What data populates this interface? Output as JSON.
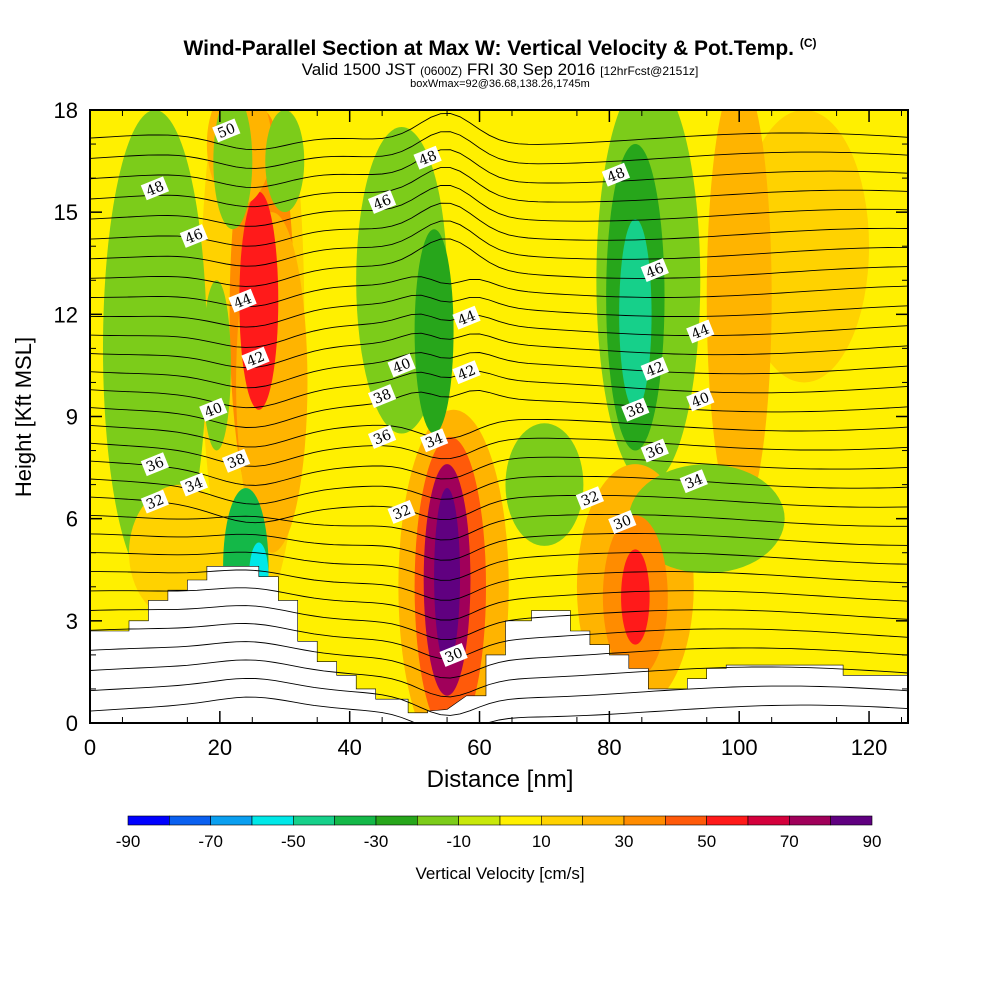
{
  "title": "Wind-Parallel Section at Max W: Vertical Velocity & Pot.Temp.",
  "title_mark": "(C)",
  "subtitle_pre": "Valid 1500 JST",
  "subtitle_small1": "(0600Z)",
  "subtitle_mid": "FRI 30 Sep 2016",
  "subtitle_small2": "[12hrFcst@2151z]",
  "subtitle2": "boxWmax=92@36.68,138.26,1745m",
  "chart_data": {
    "type": "heatmap",
    "xlabel": "Distance [nm]",
    "ylabel": "Height [Kft MSL]",
    "xlim": [
      0,
      126
    ],
    "ylim": [
      0,
      18
    ],
    "xticks": [
      0,
      20,
      40,
      60,
      80,
      100,
      120
    ],
    "yticks": [
      0,
      3,
      6,
      9,
      12,
      15,
      18
    ],
    "colorbar": {
      "label": "Vertical Velocity [cm/s]",
      "levels": [
        -90,
        -80,
        -70,
        -60,
        -50,
        -40,
        -30,
        -20,
        -10,
        0,
        10,
        20,
        30,
        40,
        50,
        60,
        70,
        80,
        90
      ],
      "tick_labels": [
        "-90",
        "-70",
        "-50",
        "-30",
        "-10",
        "10",
        "30",
        "50",
        "70",
        "90"
      ],
      "colors": [
        "#0000ff",
        "#0a60f0",
        "#0a9ff0",
        "#00e8e8",
        "#16d08a",
        "#14b848",
        "#27a61b",
        "#7ccc1a",
        "#c8e80a",
        "#fff000",
        "#ffd200",
        "#ffb400",
        "#ff8c00",
        "#ff5a0a",
        "#ff1a1a",
        "#d4003c",
        "#a0005a",
        "#600080"
      ]
    },
    "terrain": [
      [
        0,
        2.7
      ],
      [
        6,
        2.7
      ],
      [
        6,
        3.0
      ],
      [
        9,
        3.0
      ],
      [
        9,
        3.6
      ],
      [
        12,
        3.6
      ],
      [
        12,
        3.9
      ],
      [
        15,
        3.9
      ],
      [
        15,
        4.2
      ],
      [
        18,
        4.2
      ],
      [
        18,
        4.6
      ],
      [
        26,
        4.6
      ],
      [
        26,
        4.3
      ],
      [
        29,
        4.3
      ],
      [
        29,
        3.6
      ],
      [
        32,
        3.6
      ],
      [
        32,
        2.4
      ],
      [
        35,
        2.4
      ],
      [
        35,
        1.8
      ],
      [
        38,
        1.8
      ],
      [
        38,
        1.4
      ],
      [
        41,
        1.4
      ],
      [
        41,
        1.0
      ],
      [
        44,
        1.0
      ],
      [
        44,
        0.7
      ],
      [
        49,
        0.7
      ],
      [
        49,
        0.3
      ],
      [
        52,
        0.3
      ],
      [
        52,
        0.35
      ],
      [
        55,
        0.4
      ],
      [
        58,
        0.8
      ],
      [
        61,
        0.8
      ],
      [
        61,
        2.0
      ],
      [
        64,
        2.0
      ],
      [
        64,
        3.0
      ],
      [
        68,
        3.0
      ],
      [
        68,
        3.3
      ],
      [
        74,
        3.3
      ],
      [
        74,
        2.7
      ],
      [
        77,
        2.7
      ],
      [
        77,
        2.3
      ],
      [
        80,
        2.3
      ],
      [
        80,
        2.0
      ],
      [
        83,
        2.0
      ],
      [
        83,
        1.6
      ],
      [
        86,
        1.6
      ],
      [
        86,
        1.0
      ],
      [
        92,
        1.0
      ],
      [
        92,
        1.3
      ],
      [
        95,
        1.3
      ],
      [
        95,
        1.6
      ],
      [
        98,
        1.6
      ],
      [
        98,
        1.7
      ],
      [
        116,
        1.7
      ],
      [
        116,
        1.4
      ],
      [
        126,
        1.4
      ]
    ],
    "w_cells": [
      {
        "x": 26,
        "y": 12.4,
        "rx": 3,
        "ry": 3.2,
        "w": 55
      },
      {
        "x": 26.5,
        "y": 12,
        "rx": 5,
        "ry": 6,
        "w": 35
      },
      {
        "x": 25,
        "y": 12,
        "rx": 8,
        "ry": 9,
        "w": 15
      },
      {
        "x": 28,
        "y": 10,
        "rx": 5.5,
        "ry": 5,
        "w": 25
      },
      {
        "x": 23,
        "y": 17,
        "rx": 5,
        "ry": 1.8,
        "w": 25
      },
      {
        "x": 55,
        "y": 4.3,
        "rx": 2,
        "ry": 2.6,
        "w": 90
      },
      {
        "x": 55,
        "y": 4.2,
        "rx": 3.6,
        "ry": 3.4,
        "w": 70
      },
      {
        "x": 55.5,
        "y": 4,
        "rx": 5.5,
        "ry": 4.4,
        "w": 45
      },
      {
        "x": 56,
        "y": 4,
        "rx": 8.5,
        "ry": 5.2,
        "w": 22
      },
      {
        "x": 84,
        "y": 3.7,
        "rx": 2.2,
        "ry": 1.4,
        "w": 50
      },
      {
        "x": 84,
        "y": 3.7,
        "rx": 5,
        "ry": 2.4,
        "w": 38
      },
      {
        "x": 84,
        "y": 4,
        "rx": 9,
        "ry": 3.6,
        "w": 20
      },
      {
        "x": 100,
        "y": 12.5,
        "rx": 5,
        "ry": 6.5,
        "w": 22
      },
      {
        "x": 110,
        "y": 14,
        "rx": 10,
        "ry": 4,
        "w": 15
      },
      {
        "x": 14,
        "y": 5,
        "rx": 8,
        "ry": 2,
        "w": 18
      },
      {
        "x": 10,
        "y": 11,
        "rx": 8,
        "ry": 7,
        "w": -12
      },
      {
        "x": 22,
        "y": 16.5,
        "rx": 3,
        "ry": 2,
        "w": -20
      },
      {
        "x": 19.5,
        "y": 10.5,
        "rx": 2.2,
        "ry": 2.5,
        "w": -20
      },
      {
        "x": 24,
        "y": 4.6,
        "rx": 3.5,
        "ry": 2.3,
        "w": -35
      },
      {
        "x": 26,
        "y": 4.3,
        "rx": 1.5,
        "ry": 1,
        "w": -55
      },
      {
        "x": 48,
        "y": 13,
        "rx": 7,
        "ry": 4.5,
        "w": -15
      },
      {
        "x": 53,
        "y": 11.5,
        "rx": 3,
        "ry": 3,
        "w": -25
      },
      {
        "x": 84,
        "y": 12.5,
        "rx": 4.5,
        "ry": 4.5,
        "w": -28
      },
      {
        "x": 84,
        "y": 12,
        "rx": 2.5,
        "ry": 2.8,
        "w": -45
      },
      {
        "x": 86,
        "y": 13,
        "rx": 8,
        "ry": 6,
        "w": -12
      },
      {
        "x": 95,
        "y": 6,
        "rx": 12,
        "ry": 1.6,
        "w": -12
      },
      {
        "x": 70,
        "y": 7,
        "rx": 6,
        "ry": 1.8,
        "w": -12
      },
      {
        "x": 30,
        "y": 16.5,
        "rx": 3,
        "ry": 1.5,
        "w": -12
      }
    ],
    "theta_labels": [
      {
        "text": "50",
        "x": 21,
        "y": 17.4
      },
      {
        "text": "48",
        "x": 10,
        "y": 15.7
      },
      {
        "text": "46",
        "x": 16,
        "y": 14.3
      },
      {
        "text": "44",
        "x": 23.5,
        "y": 12.4
      },
      {
        "text": "42",
        "x": 25.5,
        "y": 10.7
      },
      {
        "text": "40",
        "x": 19,
        "y": 9.2
      },
      {
        "text": "38",
        "x": 22.5,
        "y": 7.7
      },
      {
        "text": "36",
        "x": 10,
        "y": 7.6
      },
      {
        "text": "34",
        "x": 16,
        "y": 7
      },
      {
        "text": "32",
        "x": 10,
        "y": 6.5
      },
      {
        "text": "48",
        "x": 52,
        "y": 16.6
      },
      {
        "text": "46",
        "x": 45,
        "y": 15.3
      },
      {
        "text": "44",
        "x": 58,
        "y": 11.9
      },
      {
        "text": "42",
        "x": 58,
        "y": 10.3
      },
      {
        "text": "40",
        "x": 48,
        "y": 10.5
      },
      {
        "text": "38",
        "x": 45,
        "y": 9.6
      },
      {
        "text": "36",
        "x": 45,
        "y": 8.4
      },
      {
        "text": "34",
        "x": 53,
        "y": 8.3
      },
      {
        "text": "32",
        "x": 48,
        "y": 6.2
      },
      {
        "text": "30",
        "x": 56,
        "y": 2
      },
      {
        "text": "48",
        "x": 81,
        "y": 16.1
      },
      {
        "text": "46",
        "x": 87,
        "y": 13.3
      },
      {
        "text": "44",
        "x": 94,
        "y": 11.5
      },
      {
        "text": "42",
        "x": 87,
        "y": 10.4
      },
      {
        "text": "40",
        "x": 94,
        "y": 9.5
      },
      {
        "text": "38",
        "x": 84,
        "y": 9.2
      },
      {
        "text": "36",
        "x": 87,
        "y": 8
      },
      {
        "text": "34",
        "x": 93,
        "y": 7.1
      },
      {
        "text": "32",
        "x": 77,
        "y": 6.6
      },
      {
        "text": "30",
        "x": 82,
        "y": 5.9
      }
    ]
  }
}
